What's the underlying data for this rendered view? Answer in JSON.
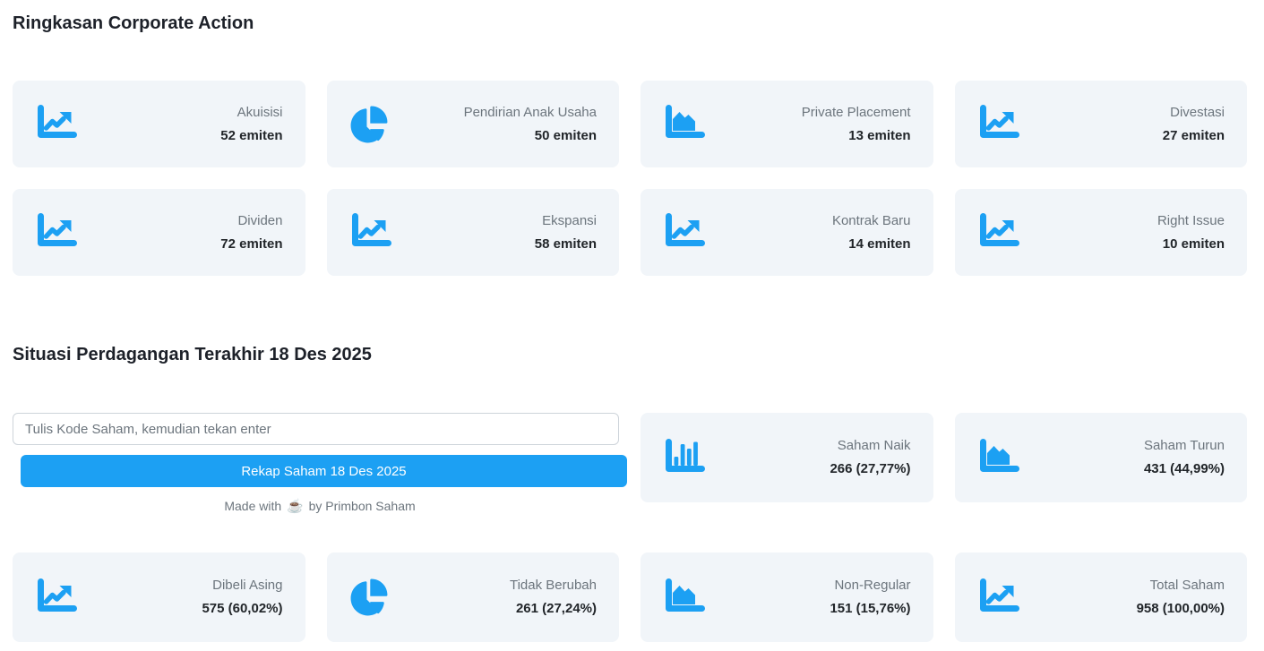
{
  "theme": {
    "accent": "#1CA0F3",
    "card_background": "#f1f5f9",
    "label_color": "#6c757d",
    "text_color": "#212529"
  },
  "section_corporate": {
    "title": "Ringkasan Corporate Action",
    "cards": [
      {
        "label": "Akuisisi",
        "value": "52 emiten",
        "icon": "chart-line-icon"
      },
      {
        "label": "Pendirian Anak Usaha",
        "value": "50 emiten",
        "icon": "chart-pie-icon"
      },
      {
        "label": "Private Placement",
        "value": "13 emiten",
        "icon": "chart-area-icon"
      },
      {
        "label": "Divestasi",
        "value": "27 emiten",
        "icon": "chart-line-icon"
      },
      {
        "label": "Dividen",
        "value": "72 emiten",
        "icon": "chart-line-icon"
      },
      {
        "label": "Ekspansi",
        "value": "58 emiten",
        "icon": "chart-line-icon"
      },
      {
        "label": "Kontrak Baru",
        "value": "14 emiten",
        "icon": "chart-line-icon"
      },
      {
        "label": "Right Issue",
        "value": "10 emiten",
        "icon": "chart-line-icon"
      }
    ]
  },
  "section_trading": {
    "title": "Situasi Perdagangan Terakhir 18 Des 2025",
    "search_placeholder": "Tulis Kode Saham, kemudian tekan enter",
    "button_label": "Rekap Saham 18 Des 2025",
    "credit_prefix": "Made with",
    "credit_icon": "coffee-icon",
    "credit_suffix": "by Primbon Saham",
    "cards_top": [
      {
        "label": "Saham Naik",
        "value": "266 (27,77%)",
        "icon": "chart-column-icon"
      },
      {
        "label": "Saham Turun",
        "value": "431 (44,99%)",
        "icon": "chart-area-icon"
      }
    ],
    "cards_bottom": [
      {
        "label": "Dibeli Asing",
        "value": "575 (60,02%)",
        "icon": "chart-line-icon"
      },
      {
        "label": "Tidak Berubah",
        "value": "261 (27,24%)",
        "icon": "chart-pie-icon"
      },
      {
        "label": "Non-Regular",
        "value": "151 (15,76%)",
        "icon": "chart-area-icon"
      },
      {
        "label": "Total Saham",
        "value": "958 (100,00%)",
        "icon": "chart-line-icon"
      }
    ]
  }
}
